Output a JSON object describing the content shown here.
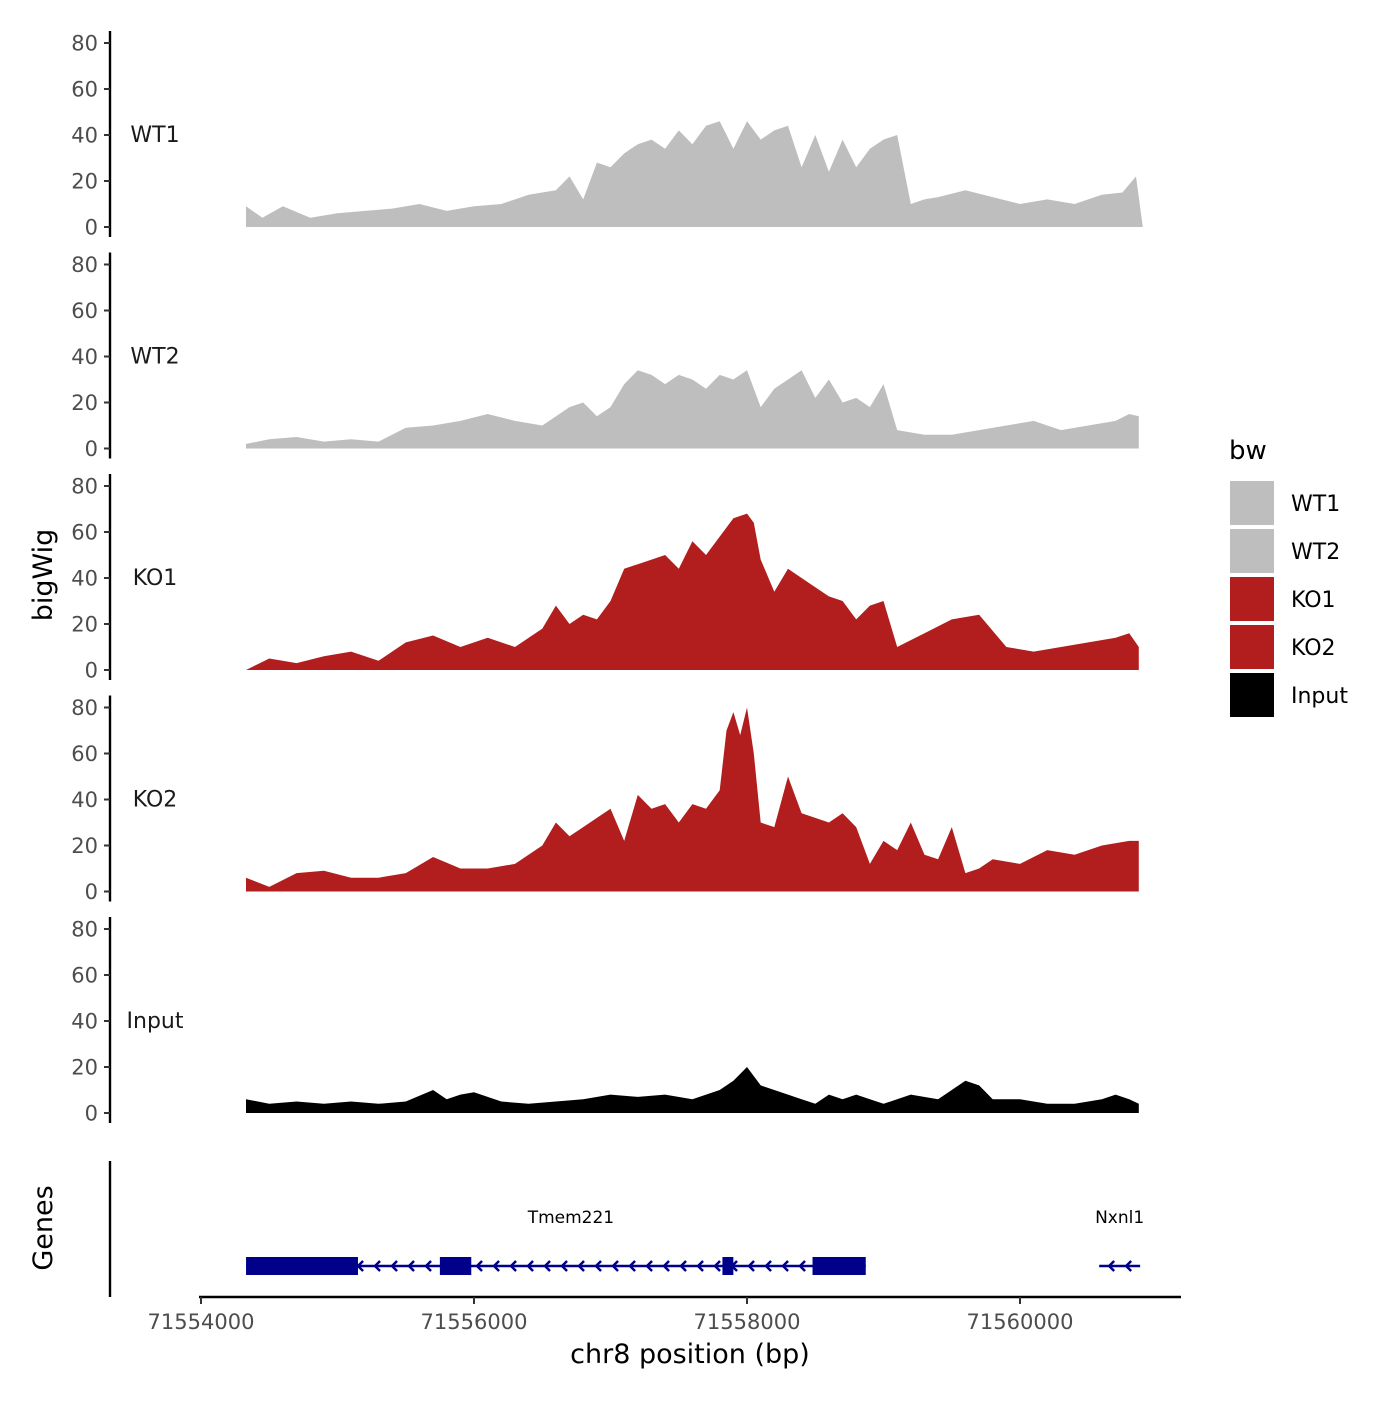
{
  "chart_data": {
    "type": "area",
    "ylabel": "bigWig",
    "xlabel": "chr8 position (bp)",
    "ylim": [
      0,
      85
    ],
    "yticks": [
      0,
      20,
      40,
      60,
      80
    ],
    "x_range": [
      71553800,
      71561200
    ],
    "xticks": [
      71554000,
      71556000,
      71558000,
      71560000
    ],
    "legend": {
      "title": "bw",
      "placement": "right",
      "entries": [
        {
          "label": "WT1",
          "color": "#bebebe"
        },
        {
          "label": "WT2",
          "color": "#bebebe"
        },
        {
          "label": "KO1",
          "color": "#b21e1e"
        },
        {
          "label": "KO2",
          "color": "#b21e1e"
        },
        {
          "label": "Input",
          "color": "#000000"
        }
      ]
    },
    "tracks": [
      {
        "name": "WT1",
        "color": "#bebebe",
        "x": [
          71554330,
          71554450,
          71554600,
          71554800,
          71555000,
          71555200,
          71555400,
          71555600,
          71555800,
          71556000,
          71556200,
          71556400,
          71556600,
          71556700,
          71556800,
          71556900,
          71557000,
          71557100,
          71557200,
          71557300,
          71557400,
          71557500,
          71557600,
          71557700,
          71557800,
          71557900,
          71558000,
          71558100,
          71558200,
          71558300,
          71558400,
          71558500,
          71558600,
          71558700,
          71558800,
          71558900,
          71559000,
          71559100,
          71559200,
          71559300,
          71559400,
          71559600,
          71559800,
          71560000,
          71560200,
          71560400,
          71560600,
          71560750,
          71560850,
          71560900
        ],
        "y": [
          9,
          4,
          9,
          4,
          6,
          7,
          8,
          10,
          7,
          9,
          10,
          14,
          16,
          22,
          12,
          28,
          26,
          32,
          36,
          38,
          34,
          42,
          36,
          44,
          46,
          34,
          46,
          38,
          42,
          44,
          26,
          40,
          24,
          38,
          26,
          34,
          38,
          40,
          10,
          12,
          13,
          16,
          13,
          10,
          12,
          10,
          14,
          15,
          22,
          0
        ]
      },
      {
        "name": "WT2",
        "color": "#bebebe",
        "x": [
          71554330,
          71554500,
          71554700,
          71554900,
          71555100,
          71555300,
          71555500,
          71555700,
          71555900,
          71556100,
          71556300,
          71556500,
          71556700,
          71556800,
          71556900,
          71557000,
          71557100,
          71557200,
          71557300,
          71557400,
          71557500,
          71557600,
          71557700,
          71557800,
          71557900,
          71558000,
          71558100,
          71558200,
          71558300,
          71558400,
          71558500,
          71558600,
          71558700,
          71558800,
          71558900,
          71559000,
          71559100,
          71559300,
          71559500,
          71559700,
          71559900,
          71560100,
          71560300,
          71560500,
          71560700,
          71560800,
          71560870
        ],
        "y": [
          2,
          4,
          5,
          3,
          4,
          3,
          9,
          10,
          12,
          15,
          12,
          10,
          18,
          20,
          14,
          18,
          28,
          34,
          32,
          28,
          32,
          30,
          26,
          32,
          30,
          34,
          18,
          26,
          30,
          34,
          22,
          30,
          20,
          22,
          18,
          28,
          8,
          6,
          6,
          8,
          10,
          12,
          8,
          10,
          12,
          15,
          14
        ]
      },
      {
        "name": "KO1",
        "color": "#b21e1e",
        "x": [
          71554330,
          71554500,
          71554700,
          71554900,
          71555100,
          71555300,
          71555500,
          71555700,
          71555900,
          71556100,
          71556300,
          71556500,
          71556600,
          71556700,
          71556800,
          71556900,
          71557000,
          71557100,
          71557200,
          71557300,
          71557400,
          71557500,
          71557600,
          71557700,
          71557800,
          71557900,
          71558000,
          71558050,
          71558100,
          71558200,
          71558300,
          71558400,
          71558500,
          71558600,
          71558700,
          71558800,
          71558900,
          71559000,
          71559100,
          71559300,
          71559500,
          71559700,
          71559900,
          71560100,
          71560300,
          71560500,
          71560700,
          71560800,
          71560870
        ],
        "y": [
          0,
          5,
          3,
          6,
          8,
          4,
          12,
          15,
          10,
          14,
          10,
          18,
          28,
          20,
          24,
          22,
          30,
          44,
          46,
          48,
          50,
          44,
          56,
          50,
          58,
          66,
          68,
          64,
          48,
          34,
          44,
          40,
          36,
          32,
          30,
          22,
          28,
          30,
          10,
          16,
          22,
          24,
          10,
          8,
          10,
          12,
          14,
          16,
          10
        ]
      },
      {
        "name": "KO2",
        "color": "#b21e1e",
        "x": [
          71554330,
          71554500,
          71554700,
          71554900,
          71555100,
          71555300,
          71555500,
          71555700,
          71555900,
          71556100,
          71556300,
          71556500,
          71556600,
          71556700,
          71556800,
          71556900,
          71557000,
          71557100,
          71557200,
          71557300,
          71557400,
          71557500,
          71557600,
          71557700,
          71557800,
          71557850,
          71557900,
          71557950,
          71558000,
          71558050,
          71558100,
          71558200,
          71558300,
          71558400,
          71558500,
          71558600,
          71558700,
          71558800,
          71558900,
          71559000,
          71559100,
          71559200,
          71559300,
          71559400,
          71559500,
          71559600,
          71559700,
          71559800,
          71560000,
          71560200,
          71560400,
          71560600,
          71560800,
          71560870
        ],
        "y": [
          6,
          2,
          8,
          9,
          6,
          6,
          8,
          15,
          10,
          10,
          12,
          20,
          30,
          24,
          28,
          32,
          36,
          22,
          42,
          36,
          38,
          30,
          38,
          36,
          44,
          70,
          78,
          68,
          80,
          60,
          30,
          28,
          50,
          34,
          32,
          30,
          34,
          28,
          12,
          22,
          18,
          30,
          16,
          14,
          28,
          8,
          10,
          14,
          12,
          18,
          16,
          20,
          22,
          22
        ]
      },
      {
        "name": "Input",
        "color": "#000000",
        "x": [
          71554330,
          71554500,
          71554700,
          71554900,
          71555100,
          71555300,
          71555500,
          71555700,
          71555800,
          71555900,
          71556000,
          71556200,
          71556400,
          71556600,
          71556800,
          71557000,
          71557200,
          71557400,
          71557600,
          71557800,
          71557900,
          71558000,
          71558100,
          71558200,
          71558300,
          71558400,
          71558500,
          71558600,
          71558700,
          71558800,
          71558900,
          71559000,
          71559200,
          71559400,
          71559600,
          71559700,
          71559800,
          71560000,
          71560200,
          71560400,
          71560600,
          71560700,
          71560800,
          71560870
        ],
        "y": [
          6,
          4,
          5,
          4,
          5,
          4,
          5,
          10,
          6,
          8,
          9,
          5,
          4,
          5,
          6,
          8,
          7,
          8,
          6,
          10,
          14,
          20,
          12,
          10,
          8,
          6,
          4,
          8,
          6,
          8,
          6,
          4,
          8,
          6,
          14,
          12,
          6,
          6,
          4,
          4,
          6,
          8,
          6,
          4
        ]
      }
    ],
    "genes": [
      {
        "name": "Tmem221",
        "start": 71554330,
        "end": 71558870,
        "strand": "-",
        "exons": [
          [
            71554330,
            71555150
          ],
          [
            71555750,
            71555980
          ],
          [
            71557820,
            71557900
          ],
          [
            71558480,
            71558870
          ]
        ]
      },
      {
        "name": "Nxnl1",
        "start": 71560580,
        "end": 71560880,
        "strand": "-",
        "exons": []
      }
    ],
    "gene_track_label": "Genes"
  }
}
